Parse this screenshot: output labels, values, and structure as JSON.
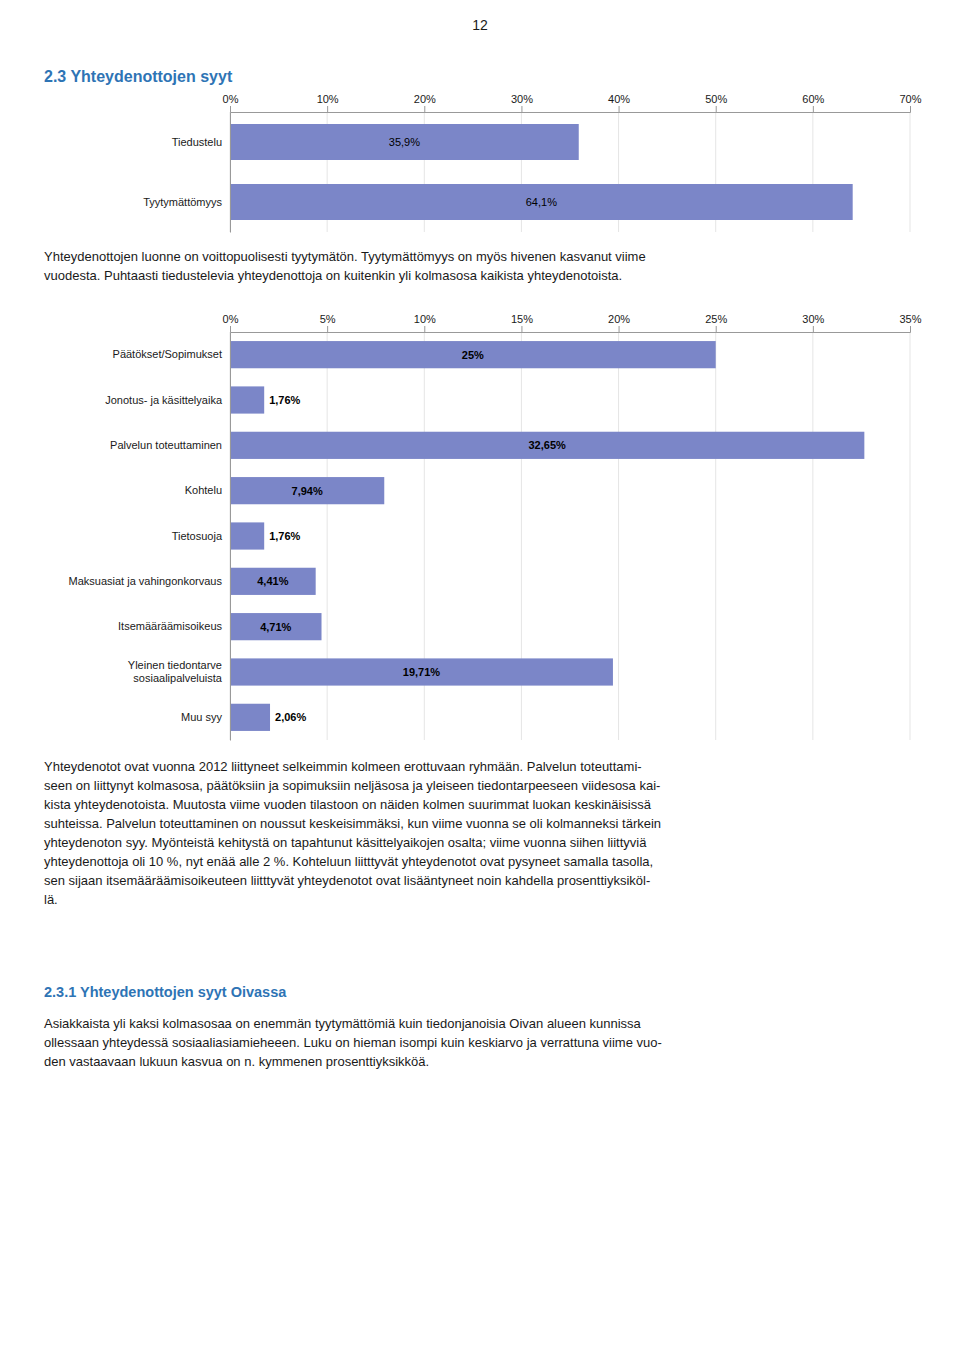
{
  "page_number": "12",
  "section_title": "2.3 Yhteydenottojen syyt",
  "paragraph1": [
    "Yhteydenottojen luonne on voittopuolisesti tyytymätön. Tyytymättömyys on myös hivenen kasvanut viime",
    "vuodesta. Puhtaasti tiedustelevia yhteydenottoja on kuitenkin yli kolmasosa kaikista yhteydenotoista."
  ],
  "paragraph2": [
    "Yhteydenotot ovat vuonna 2012 liittyneet selkeimmin kolmeen erottuvaan ryhmään. Palvelun toteuttami-",
    "seen on liittynyt kolmasosa, päätöksiin ja sopimuksiin neljäsosa ja yleiseen tiedontarpeeseen viidesosa kai-",
    "kista yhteydenotoista. Muutosta viime vuoden tilastoon on näiden kolmen suurimmat luokan keskinäisissä",
    "suhteissa. Palvelun toteuttaminen on noussut keskeisimmäksi, kun viime vuonna se oli kolmanneksi tärkein",
    "yhteydenoton syy. Myönteistä kehitystä on tapahtunut käsittelyaikojen osalta; viime vuonna siihen liittyviä",
    "yhteydenottoja oli 10 %, nyt enää alle 2 %. Kohteluun liitttyvät yhteydenotot ovat pysyneet samalla tasolla,",
    "sen sijaan itsemääräämisoikeuteen liitttyvät yhteydenotot ovat lisääntyneet noin kahdella prosenttiyksiköl-",
    "lä."
  ],
  "subsection_title": "2.3.1 Yhteydenottojen syyt Oivassa",
  "paragraph3": [
    "Asiakkaista yli kaksi kolmasosaa on enemmän tyytymättömiä kuin tiedonjanoisia Oivan alueen kunnissa",
    "ollessaan yhteydessä sosiaaliasiamieheeen. Luku on hieman isompi kuin keskiarvo ja verrattuna viime vuo-",
    "den vastaavaan lukuun kasvua on n. kymmenen prosenttiyksikköä."
  ],
  "chart_data": [
    {
      "type": "bar",
      "orientation": "horizontal",
      "categories": [
        "Tiedustelu",
        "Tyytymättömyys"
      ],
      "values": [
        35.9,
        64.1
      ],
      "value_labels": [
        "35,9%",
        "64,1%"
      ],
      "data_labels": true,
      "color": "#7b86c8",
      "xlim": [
        0,
        70
      ],
      "xticks": [
        {
          "value": 0,
          "label": "0%"
        },
        {
          "value": 10,
          "label": "10%"
        },
        {
          "value": 20,
          "label": "20%"
        },
        {
          "value": 30,
          "label": "30%"
        },
        {
          "value": 40,
          "label": "40%"
        },
        {
          "value": 50,
          "label": "50%"
        },
        {
          "value": 60,
          "label": "60%"
        },
        {
          "value": 70,
          "label": "70%"
        }
      ],
      "grid": true
    },
    {
      "type": "bar",
      "orientation": "horizontal",
      "categories": [
        "Päätökset/Sopimukset",
        "Jonotus- ja käsittelyaika",
        "Palvelun toteuttaminen",
        "Kohtelu",
        "Tietosuoja",
        "Maksuasiat ja vahingonkorvaus",
        "Itsemääräämisoikeus",
        "Yleinen tiedontarve\nsosiaalipalveluista",
        "Muu syy"
      ],
      "values": [
        25.0,
        1.76,
        32.65,
        7.94,
        1.76,
        4.41,
        4.71,
        19.71,
        2.06
      ],
      "value_labels": [
        "25%",
        "1,76%",
        "32,65%",
        "7,94%",
        "1,76%",
        "4,41%",
        "4,71%",
        "19,71%",
        "2,06%"
      ],
      "data_labels": true,
      "color": "#7b86c8",
      "xlim": [
        0,
        35
      ],
      "xticks": [
        {
          "value": 0,
          "label": "0%"
        },
        {
          "value": 5,
          "label": "5%"
        },
        {
          "value": 10,
          "label": "10%"
        },
        {
          "value": 15,
          "label": "15%"
        },
        {
          "value": 20,
          "label": "20%"
        },
        {
          "value": 25,
          "label": "25%"
        },
        {
          "value": 30,
          "label": "30%"
        },
        {
          "value": 35,
          "label": "35%"
        }
      ],
      "grid": true
    }
  ]
}
